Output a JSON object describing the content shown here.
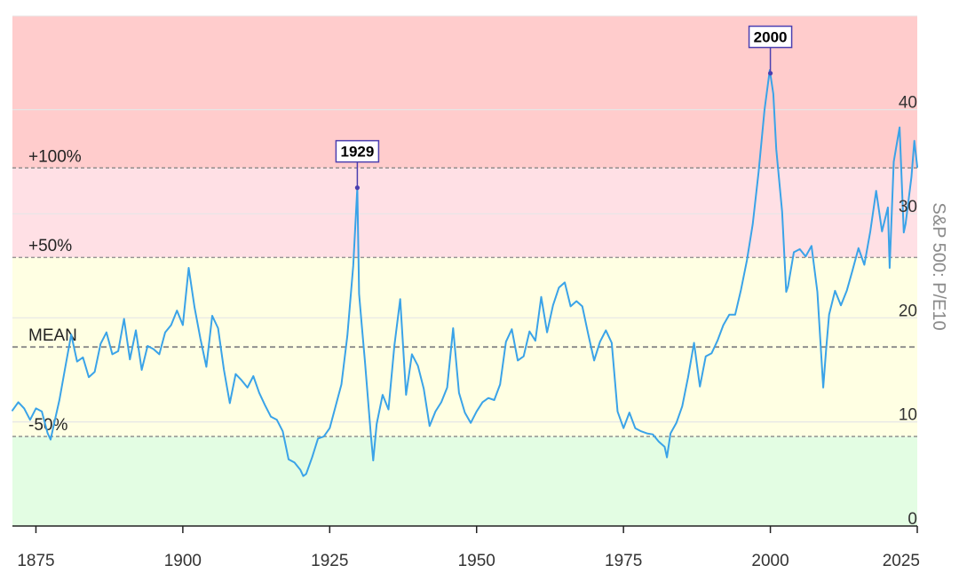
{
  "chart_data": {
    "type": "line",
    "title": "",
    "xlabel": "",
    "ylabel": "S&P 500: P/E10",
    "xlim": [
      1871,
      2025
    ],
    "ylim": [
      0,
      49
    ],
    "x_ticks": [
      1875,
      1900,
      1925,
      1950,
      1975,
      2000,
      2025
    ],
    "y_ticks": [
      0,
      10,
      20,
      30,
      40
    ],
    "grid": true,
    "colors": {
      "line": "#3aa3e8",
      "zone_high": "#ffcccc",
      "zone_mid_high": "#ffe0e5",
      "zone_mid": "#ffffe3",
      "zone_low": "#e3fde3",
      "annotation_border": "#4b3fb0",
      "reference_line": "#888888"
    },
    "reference_lines": [
      {
        "label": "+100%",
        "value": 34.4
      },
      {
        "label": "+50%",
        "value": 25.8
      },
      {
        "label": "MEAN",
        "value": 17.2
      },
      {
        "label": "-50%",
        "value": 8.6
      }
    ],
    "annotations": [
      {
        "label": "1929",
        "x": 1929.7,
        "y": 32.5
      },
      {
        "label": "2000",
        "x": 2000.0,
        "y": 43.5
      }
    ],
    "series": [
      {
        "name": "",
        "points": [
          [
            1871.0,
            11.1
          ],
          [
            1872.0,
            11.9
          ],
          [
            1873.0,
            11.3
          ],
          [
            1874.0,
            10.2
          ],
          [
            1875.0,
            11.3
          ],
          [
            1876.0,
            11.0
          ],
          [
            1877.0,
            8.9
          ],
          [
            1877.5,
            8.3
          ],
          [
            1878.0,
            9.6
          ],
          [
            1879.0,
            12.1
          ],
          [
            1880.0,
            15.3
          ],
          [
            1881.0,
            18.4
          ],
          [
            1882.0,
            15.8
          ],
          [
            1883.0,
            16.2
          ],
          [
            1884.0,
            14.3
          ],
          [
            1885.0,
            14.8
          ],
          [
            1886.0,
            17.5
          ],
          [
            1887.0,
            18.6
          ],
          [
            1888.0,
            16.5
          ],
          [
            1889.0,
            16.8
          ],
          [
            1890.0,
            19.9
          ],
          [
            1891.0,
            16.0
          ],
          [
            1892.0,
            18.8
          ],
          [
            1893.0,
            15.0
          ],
          [
            1894.0,
            17.3
          ],
          [
            1895.0,
            17.0
          ],
          [
            1896.0,
            16.5
          ],
          [
            1897.0,
            18.6
          ],
          [
            1898.0,
            19.3
          ],
          [
            1899.0,
            20.7
          ],
          [
            1900.0,
            19.3
          ],
          [
            1901.0,
            24.8
          ],
          [
            1902.0,
            21.0
          ],
          [
            1903.0,
            18.0
          ],
          [
            1904.0,
            15.3
          ],
          [
            1905.0,
            20.2
          ],
          [
            1906.0,
            19.0
          ],
          [
            1907.0,
            15.0
          ],
          [
            1908.0,
            11.8
          ],
          [
            1909.0,
            14.6
          ],
          [
            1910.0,
            14.0
          ],
          [
            1911.0,
            13.3
          ],
          [
            1912.0,
            14.4
          ],
          [
            1913.0,
            12.8
          ],
          [
            1914.0,
            11.6
          ],
          [
            1915.0,
            10.5
          ],
          [
            1916.0,
            10.2
          ],
          [
            1917.0,
            9.1
          ],
          [
            1918.0,
            6.4
          ],
          [
            1919.0,
            6.1
          ],
          [
            1920.0,
            5.4
          ],
          [
            1920.5,
            4.8
          ],
          [
            1921.0,
            5.0
          ],
          [
            1922.0,
            6.6
          ],
          [
            1923.0,
            8.4
          ],
          [
            1924.0,
            8.6
          ],
          [
            1925.0,
            9.4
          ],
          [
            1926.0,
            11.5
          ],
          [
            1927.0,
            13.6
          ],
          [
            1928.0,
            18.3
          ],
          [
            1929.0,
            25.0
          ],
          [
            1929.7,
            32.5
          ],
          [
            1930.0,
            22.3
          ],
          [
            1930.5,
            19.0
          ],
          [
            1931.0,
            15.8
          ],
          [
            1932.0,
            8.8
          ],
          [
            1932.4,
            6.3
          ],
          [
            1933.0,
            9.8
          ],
          [
            1934.0,
            12.6
          ],
          [
            1935.0,
            11.2
          ],
          [
            1936.0,
            17.3
          ],
          [
            1937.0,
            21.8
          ],
          [
            1938.0,
            12.6
          ],
          [
            1939.0,
            16.5
          ],
          [
            1940.0,
            15.4
          ],
          [
            1941.0,
            13.2
          ],
          [
            1942.0,
            9.6
          ],
          [
            1943.0,
            11.0
          ],
          [
            1944.0,
            11.9
          ],
          [
            1945.0,
            13.3
          ],
          [
            1946.0,
            19.0
          ],
          [
            1947.0,
            12.8
          ],
          [
            1948.0,
            10.9
          ],
          [
            1949.0,
            9.9
          ],
          [
            1950.0,
            11.0
          ],
          [
            1951.0,
            11.9
          ],
          [
            1952.0,
            12.3
          ],
          [
            1953.0,
            12.1
          ],
          [
            1954.0,
            13.6
          ],
          [
            1955.0,
            17.7
          ],
          [
            1956.0,
            18.9
          ],
          [
            1957.0,
            15.9
          ],
          [
            1958.0,
            16.3
          ],
          [
            1959.0,
            18.7
          ],
          [
            1960.0,
            17.8
          ],
          [
            1961.0,
            22.0
          ],
          [
            1962.0,
            18.6
          ],
          [
            1963.0,
            21.2
          ],
          [
            1964.0,
            22.9
          ],
          [
            1965.0,
            23.4
          ],
          [
            1966.0,
            21.1
          ],
          [
            1967.0,
            21.6
          ],
          [
            1968.0,
            21.1
          ],
          [
            1969.0,
            18.4
          ],
          [
            1970.0,
            15.9
          ],
          [
            1971.0,
            17.7
          ],
          [
            1972.0,
            18.8
          ],
          [
            1973.0,
            17.6
          ],
          [
            1974.0,
            11.0
          ],
          [
            1975.0,
            9.4
          ],
          [
            1976.0,
            10.9
          ],
          [
            1977.0,
            9.4
          ],
          [
            1978.0,
            9.1
          ],
          [
            1979.0,
            8.9
          ],
          [
            1980.0,
            8.8
          ],
          [
            1981.0,
            8.1
          ],
          [
            1982.0,
            7.6
          ],
          [
            1982.4,
            6.6
          ],
          [
            1983.0,
            8.9
          ],
          [
            1984.0,
            9.9
          ],
          [
            1985.0,
            11.5
          ],
          [
            1986.0,
            14.3
          ],
          [
            1987.0,
            17.6
          ],
          [
            1988.0,
            13.4
          ],
          [
            1989.0,
            16.3
          ],
          [
            1990.0,
            16.6
          ],
          [
            1991.0,
            17.8
          ],
          [
            1992.0,
            19.3
          ],
          [
            1993.0,
            20.3
          ],
          [
            1994.0,
            20.3
          ],
          [
            1995.0,
            22.7
          ],
          [
            1996.0,
            25.5
          ],
          [
            1997.0,
            29.0
          ],
          [
            1998.0,
            34.0
          ],
          [
            1999.0,
            40.0
          ],
          [
            1999.9,
            43.8
          ],
          [
            2000.5,
            41.5
          ],
          [
            2001.0,
            36.2
          ],
          [
            2002.0,
            30.2
          ],
          [
            2002.7,
            22.5
          ],
          [
            2003.0,
            23.0
          ],
          [
            2004.0,
            26.3
          ],
          [
            2005.0,
            26.6
          ],
          [
            2006.0,
            25.9
          ],
          [
            2007.0,
            26.9
          ],
          [
            2008.0,
            22.5
          ],
          [
            2009.0,
            13.3
          ],
          [
            2009.5,
            17.0
          ],
          [
            2010.0,
            20.3
          ],
          [
            2011.0,
            22.6
          ],
          [
            2012.0,
            21.2
          ],
          [
            2013.0,
            22.6
          ],
          [
            2014.0,
            24.6
          ],
          [
            2015.0,
            26.7
          ],
          [
            2016.0,
            25.1
          ],
          [
            2017.0,
            28.3
          ],
          [
            2018.0,
            32.2
          ],
          [
            2019.0,
            28.3
          ],
          [
            2020.0,
            30.6
          ],
          [
            2020.3,
            24.8
          ],
          [
            2021.0,
            35.0
          ],
          [
            2022.0,
            38.3
          ],
          [
            2022.7,
            28.2
          ],
          [
            2023.0,
            29.0
          ],
          [
            2024.0,
            33.5
          ],
          [
            2024.5,
            37.0
          ],
          [
            2025.0,
            34.5
          ]
        ]
      }
    ]
  }
}
